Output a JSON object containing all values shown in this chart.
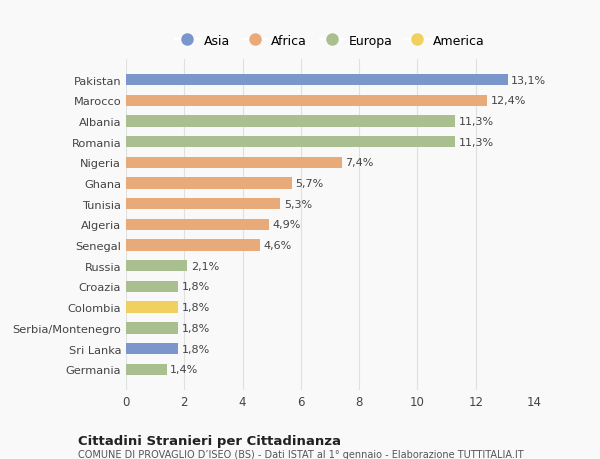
{
  "countries": [
    "Pakistan",
    "Marocco",
    "Albania",
    "Romania",
    "Nigeria",
    "Ghana",
    "Tunisia",
    "Algeria",
    "Senegal",
    "Russia",
    "Croazia",
    "Colombia",
    "Serbia/Montenegro",
    "Sri Lanka",
    "Germania"
  ],
  "values": [
    13.1,
    12.4,
    11.3,
    11.3,
    7.4,
    5.7,
    5.3,
    4.9,
    4.6,
    2.1,
    1.8,
    1.8,
    1.8,
    1.8,
    1.4
  ],
  "labels": [
    "13,1%",
    "12,4%",
    "11,3%",
    "11,3%",
    "7,4%",
    "5,7%",
    "5,3%",
    "4,9%",
    "4,6%",
    "2,1%",
    "1,8%",
    "1,8%",
    "1,8%",
    "1,8%",
    "1,4%"
  ],
  "regions": [
    "Asia",
    "Africa",
    "Europa",
    "Europa",
    "Africa",
    "Africa",
    "Africa",
    "Africa",
    "Africa",
    "Europa",
    "Europa",
    "America",
    "Europa",
    "Asia",
    "Europa"
  ],
  "region_colors": {
    "Asia": "#7b96cb",
    "Africa": "#e8aa78",
    "Europa": "#aabf90",
    "America": "#f0d060"
  },
  "legend_order": [
    "Asia",
    "Africa",
    "Europa",
    "America"
  ],
  "title": "Cittadini Stranieri per Cittadinanza",
  "subtitle": "COMUNE DI PROVAGLIO D’ISEO (BS) - Dati ISTAT al 1° gennaio - Elaborazione TUTTITALIA.IT",
  "xlim": [
    0,
    14
  ],
  "xticks": [
    0,
    2,
    4,
    6,
    8,
    10,
    12,
    14
  ],
  "background_color": "#f9f9f9",
  "grid_color": "#e0e0e0"
}
